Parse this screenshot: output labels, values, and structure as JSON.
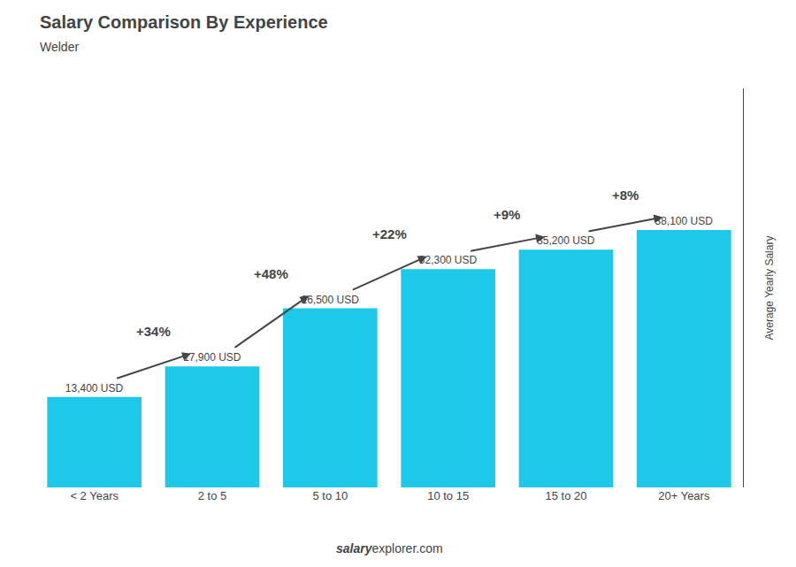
{
  "chart_data": {
    "type": "bar",
    "title": "Salary Comparison By Experience",
    "subtitle": "Welder",
    "categories": [
      "< 2 Years",
      "2 to 5",
      "5 to 10",
      "10 to 15",
      "15 to 20",
      "20+ Years"
    ],
    "values": [
      13400,
      17900,
      26500,
      32300,
      35200,
      38100
    ],
    "value_labels": [
      "13,400 USD",
      "17,900 USD",
      "26,500 USD",
      "32,300 USD",
      "35,200 USD",
      "38,100 USD"
    ],
    "data_labels": true,
    "pct_changes": [
      null,
      "+34%",
      "+48%",
      "+22%",
      "+9%",
      "+8%"
    ],
    "color": "#1ec8e8",
    "ylabel": "Average Yearly Salary",
    "footer": [
      "salary",
      "explorer.com"
    ],
    "ylim": [
      0,
      59055
    ],
    "yticks": [],
    "tick_labels": "x",
    "grid": false
  }
}
